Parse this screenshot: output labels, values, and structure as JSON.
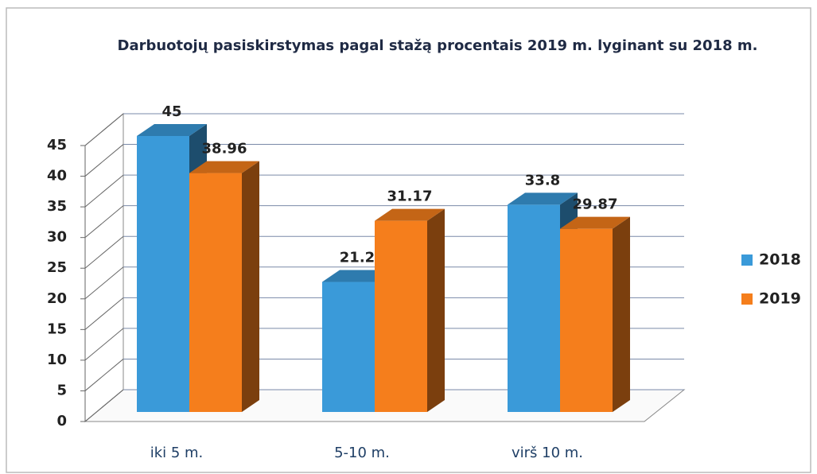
{
  "chart_data": {
    "type": "bar3d",
    "title": "Darbuotojų pasiskirstymas  pagal stažą procentais 2019 m. lyginant su 2018 m.",
    "categories": [
      "iki 5 m.",
      "5-10 m.",
      "virš 10 m."
    ],
    "series": [
      {
        "name": "2018",
        "color": "#3a9ad9",
        "values": [
          45,
          21.2,
          33.8
        ]
      },
      {
        "name": "2019",
        "color": "#f57e1c",
        "values": [
          38.96,
          31.17,
          29.87
        ]
      }
    ],
    "ylim": [
      0,
      45
    ],
    "yticks": [
      0,
      5,
      10,
      15,
      20,
      25,
      30,
      35,
      40,
      45
    ],
    "grid": true,
    "legend": "right"
  }
}
